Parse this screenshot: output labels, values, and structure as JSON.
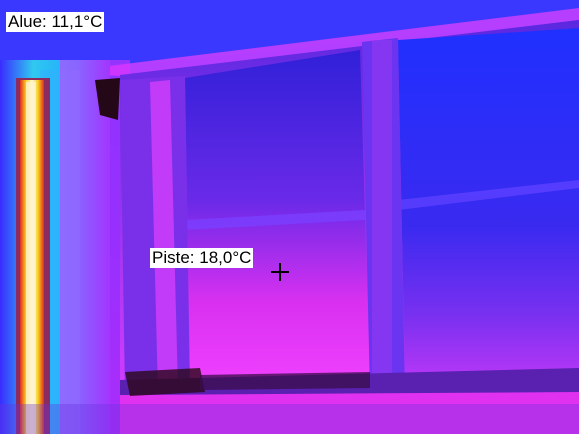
{
  "image": {
    "description_kind": "thermal-camera-image",
    "palette": "iron-rainbow",
    "area_measurement": {
      "label": "Alue: 11,1°C"
    },
    "spot_measurement": {
      "label": "Piste: 18,0°C"
    },
    "colors": {
      "cold": "#1a2cff",
      "cool": "#5a3cf0",
      "mid": "#c020e0",
      "warm": "#ff30ff",
      "cyan": "#20c8f0",
      "hot_yellow": "#f8e020",
      "hot_red": "#e03020",
      "hot_white": "#fff8d8"
    }
  }
}
